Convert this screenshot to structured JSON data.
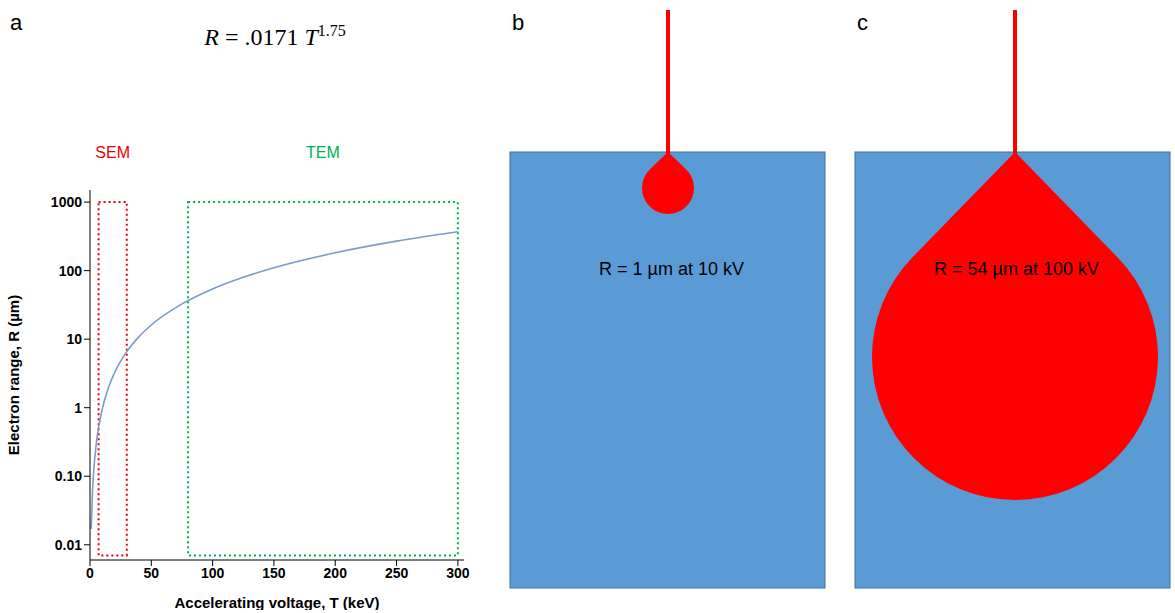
{
  "chart_data": {
    "type": "line",
    "panel_label": "a",
    "formula": {
      "text": "R = .0171 T",
      "superscript": "1.75"
    },
    "x_label": "Accelerating voltage, T (keV)",
    "y_label": "Electron range, R (µm)",
    "x": [
      1,
      2,
      3,
      5,
      7,
      10,
      15,
      20,
      30,
      40,
      50,
      75,
      100,
      125,
      150,
      200,
      250,
      300
    ],
    "series": [
      {
        "color": "#7b9cc9",
        "values": [
          0.017,
          0.058,
          0.117,
          0.286,
          0.515,
          0.962,
          1.96,
          3.23,
          6.58,
          10.9,
          16.1,
          32.7,
          54.1,
          79.9,
          110,
          182,
          269,
          369
        ]
      }
    ],
    "log": "y",
    "xlim": [
      0,
      305
    ],
    "ylim": [
      0.006,
      1500
    ],
    "xticks": [
      0,
      50,
      100,
      150,
      200,
      250,
      300
    ],
    "yticks": [
      0.01,
      {
        "value": 0.1,
        "label": "0.10"
      },
      1,
      10,
      100,
      1000
    ],
    "grid": false,
    "annotations": [
      {
        "label": "SEM",
        "color": "#e8000b",
        "x": [
          7,
          30
        ],
        "y": [
          0.007,
          1000
        ]
      },
      {
        "label": "TEM",
        "color": "#00b050",
        "x": [
          80,
          300
        ],
        "y": [
          0.007,
          1000
        ]
      }
    ]
  },
  "diagrams": [
    {
      "panel_label": "b",
      "text": "R = 1 µm at 10 kV"
    },
    {
      "panel_label": "c",
      "text": "R = 54 µm at 100 kV"
    }
  ]
}
